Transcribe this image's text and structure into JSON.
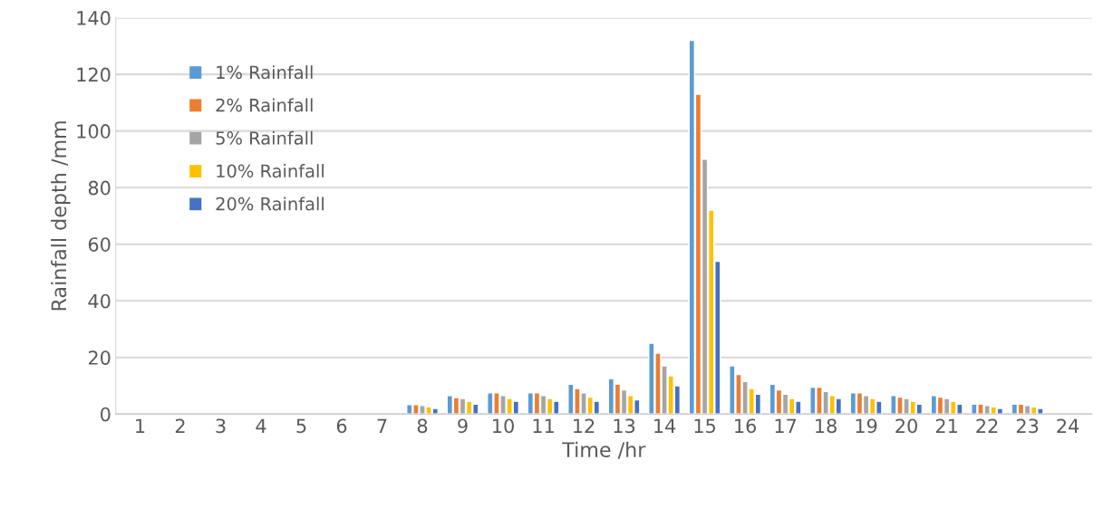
{
  "chart_data": {
    "type": "bar",
    "xlabel": "Time /hr",
    "ylabel": "Rainfall depth /mm",
    "categories": [
      "1",
      "2",
      "3",
      "4",
      "5",
      "6",
      "7",
      "8",
      "9",
      "10",
      "11",
      "12",
      "13",
      "14",
      "15",
      "16",
      "17",
      "18",
      "19",
      "20",
      "21",
      "22",
      "23",
      "24"
    ],
    "series": [
      {
        "name": "1% Rainfall",
        "color": "#5b9bd5",
        "values": [
          null,
          null,
          null,
          null,
          null,
          null,
          null,
          3.3,
          6.5,
          7.5,
          7.5,
          10.5,
          12.5,
          25,
          132,
          17,
          10.5,
          9.5,
          7.5,
          6.5,
          6.5,
          3.5,
          3.5,
          null
        ]
      },
      {
        "name": "2% Rainfall",
        "color": "#ed7d31",
        "values": [
          null,
          null,
          null,
          null,
          null,
          null,
          null,
          3.3,
          5.8,
          7.5,
          7.5,
          9,
          10.5,
          21.5,
          113,
          14,
          8.5,
          9.5,
          7.5,
          6,
          6,
          3.5,
          3.5,
          null
        ]
      },
      {
        "name": "5% Rainfall",
        "color": "#a5a5a5",
        "values": [
          null,
          null,
          null,
          null,
          null,
          null,
          null,
          3,
          5.5,
          6.5,
          6.5,
          7.5,
          8.5,
          17,
          90,
          11.5,
          7,
          8,
          6.5,
          5.5,
          5.5,
          3,
          3,
          null
        ]
      },
      {
        "name": "10% Rainfall",
        "color": "#ffc000",
        "values": [
          null,
          null,
          null,
          null,
          null,
          null,
          null,
          2.5,
          4.5,
          5.5,
          5.5,
          6,
          6.5,
          13.5,
          72,
          9,
          5.5,
          6.5,
          5.5,
          4.5,
          4.5,
          2.5,
          2.5,
          null
        ]
      },
      {
        "name": "20% Rainfall",
        "color": "#4472c4",
        "values": [
          null,
          null,
          null,
          null,
          null,
          null,
          null,
          2,
          3.5,
          4.5,
          4.5,
          4.5,
          5,
          10,
          54,
          7,
          4.5,
          5.5,
          4.5,
          3.5,
          3.5,
          2,
          2,
          null
        ]
      }
    ],
    "ylim": [
      0,
      140
    ],
    "yticks": [
      0,
      20,
      40,
      60,
      80,
      100,
      120,
      140
    ],
    "grid": "y",
    "legend": "top left"
  }
}
